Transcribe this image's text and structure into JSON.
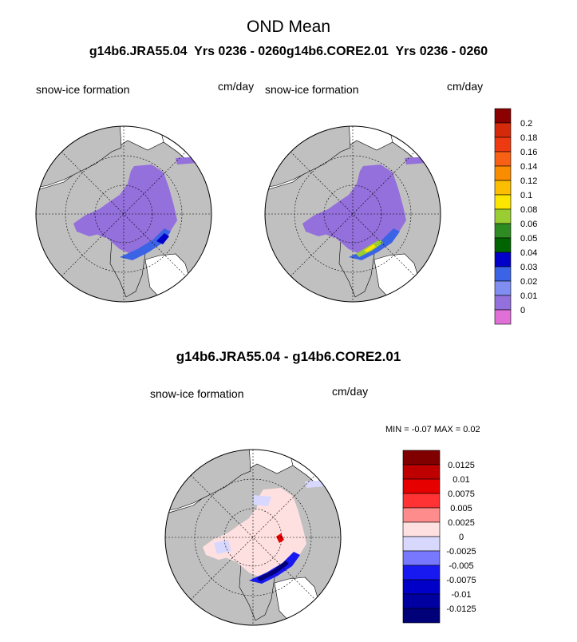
{
  "figure": {
    "title": "OND Mean",
    "subtitle_left": "g14b6.JRA55.04  Yrs 0236 - 0260",
    "subtitle_right": "g14b6.CORE2.01  Yrs 0236 - 0260"
  },
  "panels": [
    {
      "variable": "snow-ice formation",
      "units": "cm/day"
    },
    {
      "variable": "snow-ice formation",
      "units": "cm/day"
    }
  ],
  "diff_panel": {
    "title": "g14b6.JRA55.04 - g14b6.CORE2.01",
    "variable": "snow-ice formation",
    "units": "cm/day",
    "minmax": "MIN =  -0.07 MAX =   0.02"
  },
  "colorbar_top": {
    "labels": [
      "0.2",
      "0.18",
      "0.16",
      "0.14",
      "0.12",
      "0.1",
      "0.08",
      "0.06",
      "0.05",
      "0.04",
      "0.03",
      "0.02",
      "0.01",
      "0"
    ],
    "colors": [
      "#8b0000",
      "#d42a0a",
      "#ee3a10",
      "#f86014",
      "#fa8c00",
      "#fcbe00",
      "#fce600",
      "#9acd32",
      "#2e8b22",
      "#006400",
      "#0000c8",
      "#3b63e6",
      "#7f8ef0",
      "#9370db",
      "#e070d8"
    ]
  },
  "colorbar_diff": {
    "labels": [
      "0.0125",
      "0.01",
      "0.0075",
      "0.005",
      "0.0025",
      "0",
      "-0.0025",
      "-0.005",
      "-0.0075",
      "-0.01",
      "-0.0125"
    ],
    "colors": [
      "#800000",
      "#bf0000",
      "#e60000",
      "#ff3333",
      "#ff8c8c",
      "#ffe0e0",
      "#d8d8ff",
      "#7878ff",
      "#1818f0",
      "#0000c8",
      "#0000a0",
      "#000078"
    ]
  }
}
